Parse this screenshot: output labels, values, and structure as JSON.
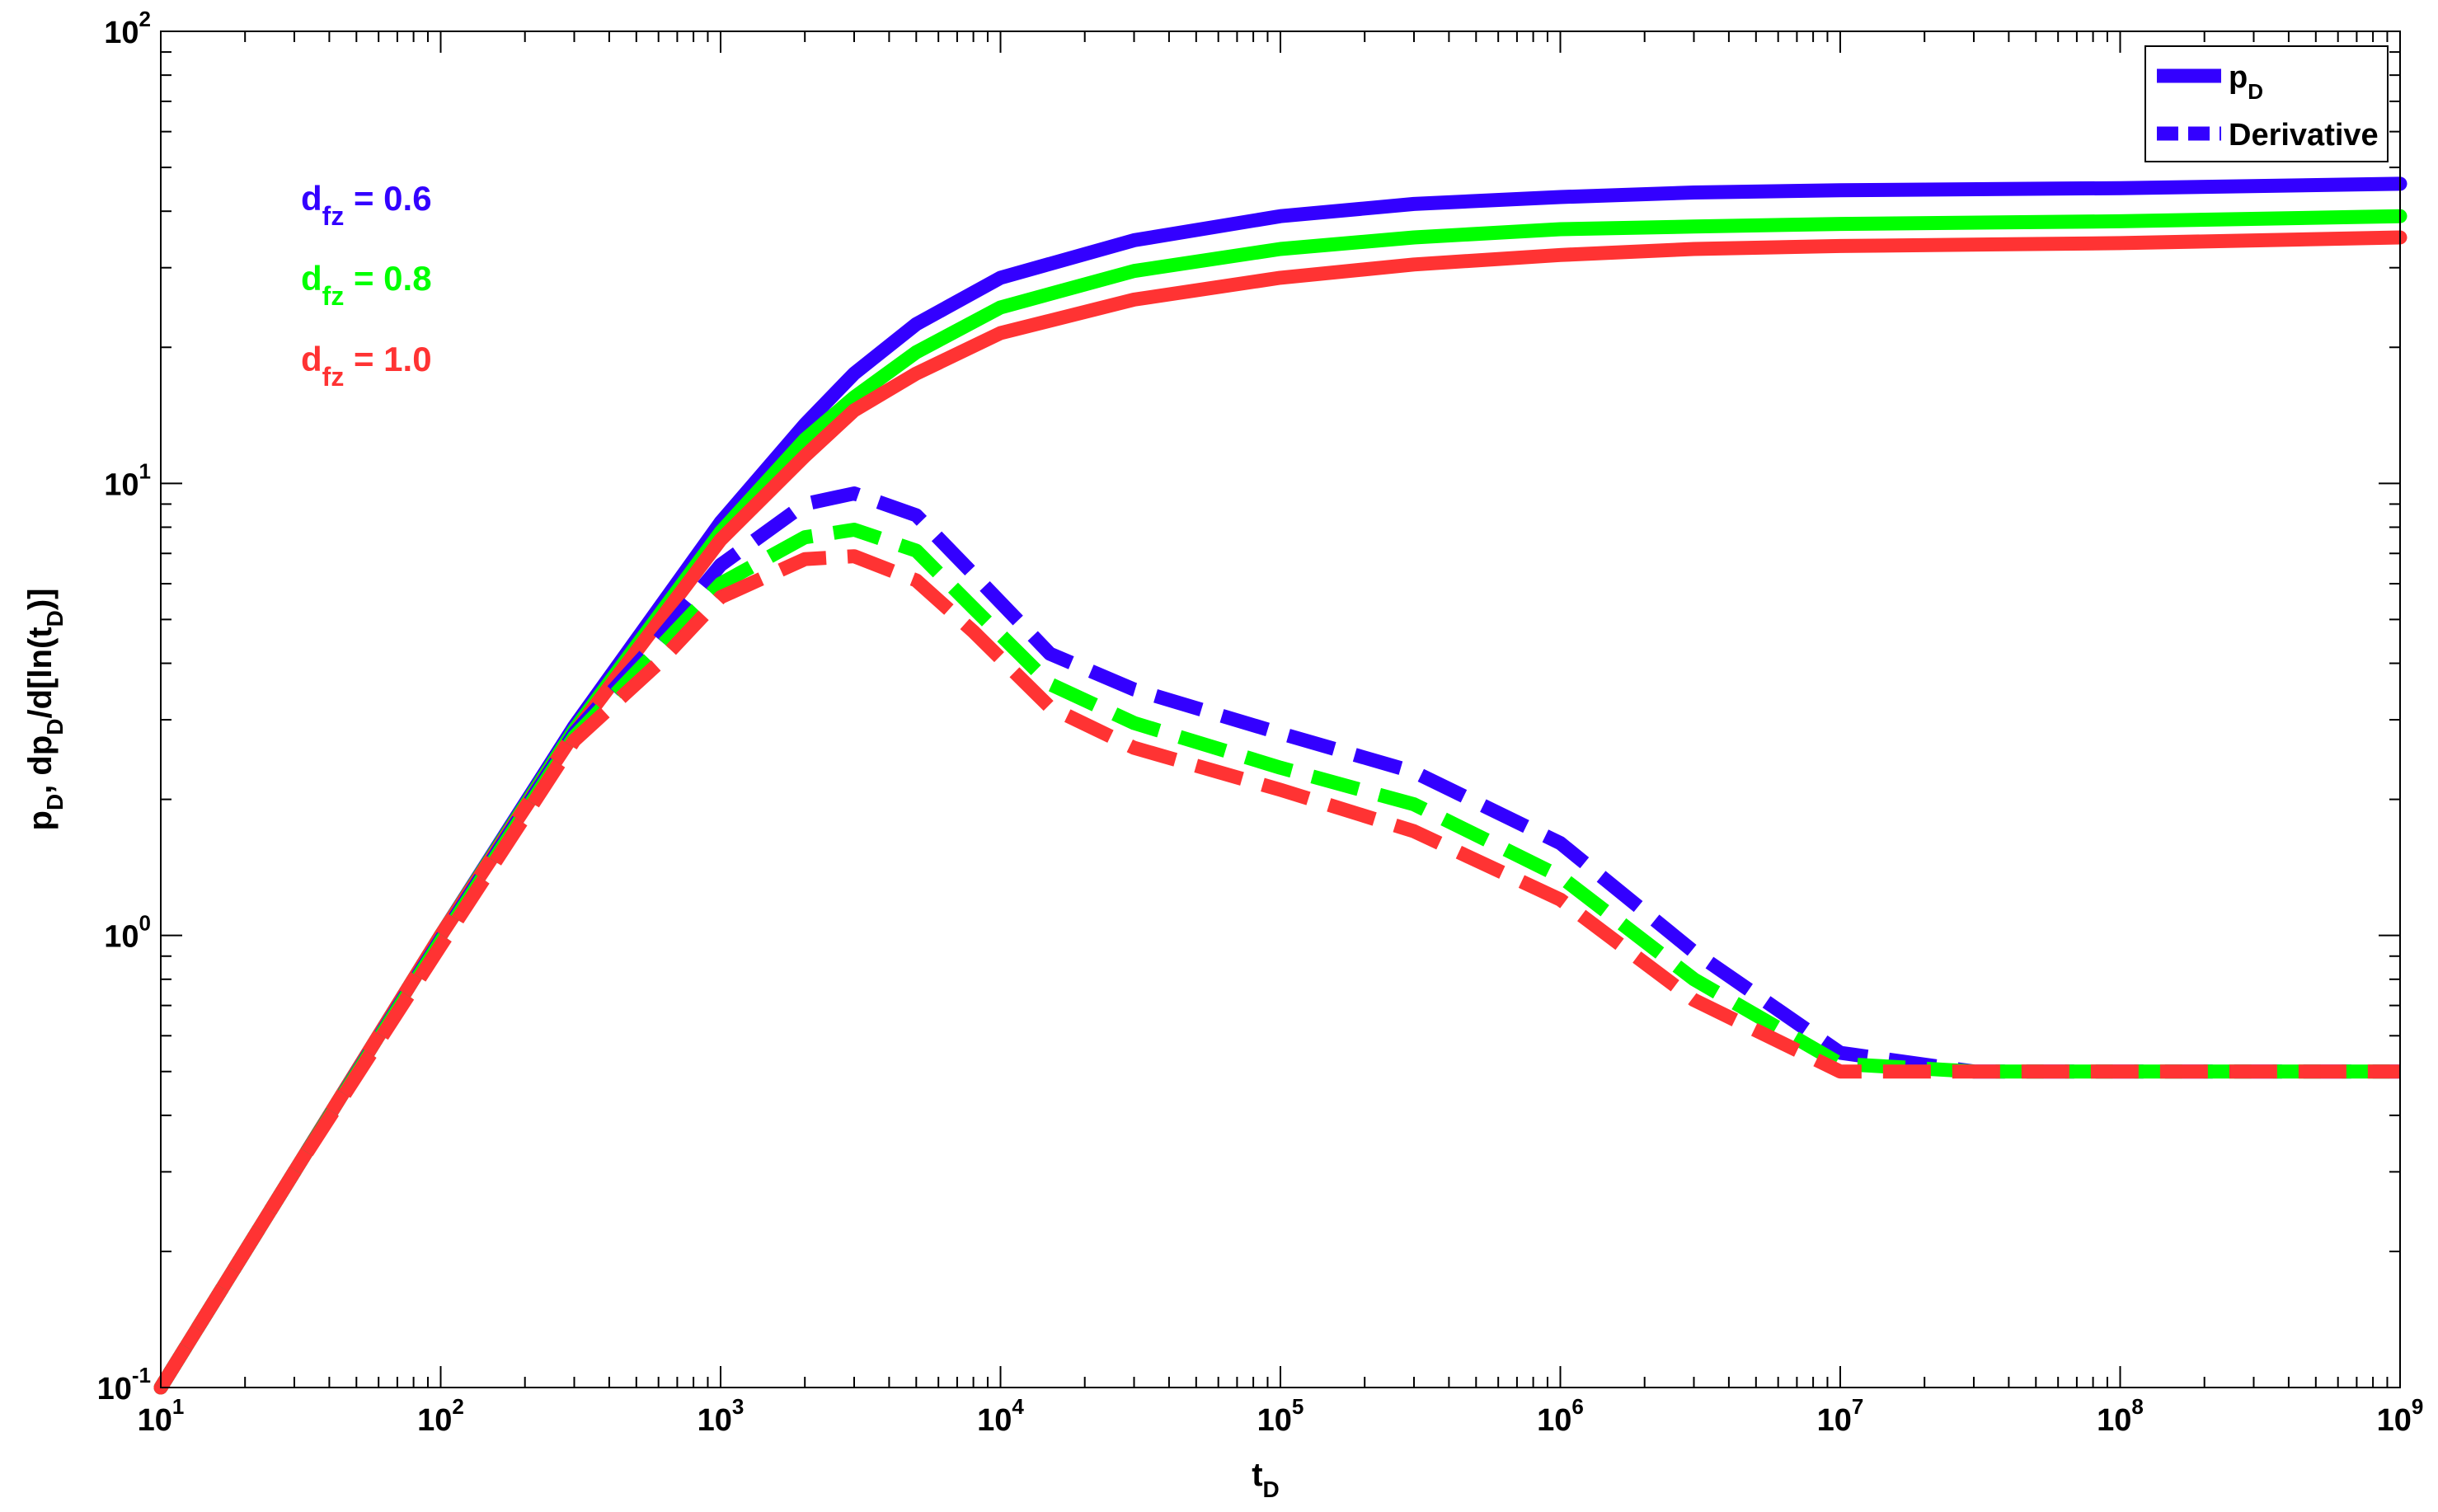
{
  "chart_data": {
    "type": "line",
    "xscale": "log",
    "yscale": "log",
    "xlim": [
      10,
      1000000000
    ],
    "ylim": [
      0.1,
      100
    ],
    "xlabel": {
      "base": "t",
      "sub": "D"
    },
    "ylabel": "p_D, dp_D/d[ln(t_D)]",
    "x_ticks": [
      {
        "base": "10",
        "exp": "1",
        "value": 10
      },
      {
        "base": "10",
        "exp": "2",
        "value": 100
      },
      {
        "base": "10",
        "exp": "3",
        "value": 1000
      },
      {
        "base": "10",
        "exp": "4",
        "value": 10000
      },
      {
        "base": "10",
        "exp": "5",
        "value": 100000
      },
      {
        "base": "10",
        "exp": "6",
        "value": 1000000
      },
      {
        "base": "10",
        "exp": "7",
        "value": 10000000
      },
      {
        "base": "10",
        "exp": "8",
        "value": 100000000
      },
      {
        "base": "10",
        "exp": "9",
        "value": 1000000000
      }
    ],
    "y_ticks": [
      {
        "base": "10",
        "exp": "-1",
        "value": 0.1
      },
      {
        "base": "10",
        "exp": "0",
        "value": 1
      },
      {
        "base": "10",
        "exp": "1",
        "value": 10
      },
      {
        "base": "10",
        "exp": "2",
        "value": 100
      }
    ],
    "legend": {
      "position": "top-right",
      "entries": [
        {
          "label": "p",
          "sub": "D",
          "style": "solid",
          "color": "#3300ff"
        },
        {
          "label": "Derivative",
          "sub": "",
          "style": "dashed",
          "color": "#3300ff"
        }
      ]
    },
    "annotations": [
      {
        "base": "d",
        "sub": "fz",
        "text": " = 0.6",
        "color": "#3300ff"
      },
      {
        "base": "d",
        "sub": "fz",
        "text": " = 0.8",
        "color": "#00ff00"
      },
      {
        "base": "d",
        "sub": "fz",
        "text": " = 1.0",
        "color": "#ff3333"
      }
    ],
    "series": [
      {
        "name": "p_D, d_fz = 0.6",
        "color": "#3300ff",
        "style": "solid",
        "x": [
          10,
          30,
          100,
          300,
          1000,
          2000,
          3000,
          5000,
          10000,
          30000,
          100000,
          300000,
          1000000,
          3000000,
          10000000,
          100000000,
          1000000000
        ],
        "y": [
          0.1,
          0.3,
          1.0,
          2.9,
          8.2,
          13.5,
          17.5,
          22.5,
          28.5,
          34.5,
          39.0,
          41.5,
          43.0,
          44.0,
          44.5,
          45.0,
          46.0
        ]
      },
      {
        "name": "p_D, d_fz = 0.8",
        "color": "#00ff00",
        "style": "solid",
        "x": [
          10,
          30,
          100,
          300,
          1000,
          2000,
          3000,
          5000,
          10000,
          30000,
          100000,
          300000,
          1000000,
          3000000,
          10000000,
          100000000,
          1000000000
        ],
        "y": [
          0.1,
          0.3,
          1.0,
          2.85,
          7.8,
          12.5,
          15.5,
          19.5,
          24.5,
          29.5,
          33.0,
          35.0,
          36.5,
          37.0,
          37.5,
          38.0,
          39.0
        ]
      },
      {
        "name": "p_D, d_fz = 1.0",
        "color": "#ff3333",
        "style": "solid",
        "x": [
          10,
          30,
          100,
          300,
          1000,
          2000,
          3000,
          5000,
          10000,
          30000,
          100000,
          300000,
          1000000,
          3000000,
          10000000,
          100000000,
          1000000000
        ],
        "y": [
          0.1,
          0.3,
          1.0,
          2.8,
          7.5,
          11.5,
          14.5,
          17.5,
          21.5,
          25.5,
          28.5,
          30.5,
          32.0,
          33.0,
          33.5,
          34.0,
          35.0
        ]
      },
      {
        "name": "Derivative, d_fz = 0.6",
        "color": "#3300ff",
        "style": "dashed",
        "x": [
          10,
          30,
          100,
          300,
          600,
          1000,
          2000,
          3000,
          5000,
          8000,
          15000,
          30000,
          100000,
          300000,
          1000000,
          3000000,
          10000000,
          30000000,
          100000000,
          1000000000
        ],
        "y": [
          0.1,
          0.3,
          0.98,
          2.8,
          4.5,
          6.6,
          9.0,
          9.5,
          8.5,
          6.3,
          4.2,
          3.5,
          2.8,
          2.3,
          1.6,
          0.92,
          0.55,
          0.5,
          0.5,
          0.5
        ]
      },
      {
        "name": "Derivative, d_fz = 0.8",
        "color": "#00ff00",
        "style": "dashed",
        "x": [
          10,
          30,
          100,
          300,
          600,
          1000,
          2000,
          3000,
          5000,
          8000,
          15000,
          30000,
          100000,
          300000,
          1000000,
          3000000,
          10000000,
          30000000,
          100000000,
          1000000000
        ],
        "y": [
          0.1,
          0.3,
          0.97,
          2.75,
          4.3,
          6.0,
          7.6,
          7.9,
          7.1,
          5.3,
          3.6,
          2.95,
          2.35,
          1.95,
          1.35,
          0.8,
          0.52,
          0.5,
          0.5,
          0.5
        ]
      },
      {
        "name": "Derivative, d_fz = 1.0",
        "color": "#ff3333",
        "style": "dashed",
        "x": [
          10,
          30,
          100,
          300,
          600,
          1000,
          2000,
          3000,
          5000,
          8000,
          15000,
          30000,
          100000,
          300000,
          1000000,
          3000000,
          10000000,
          30000000,
          100000000,
          1000000000
        ],
        "y": [
          0.1,
          0.3,
          0.95,
          2.7,
          4.0,
          5.6,
          6.8,
          6.9,
          6.1,
          4.7,
          3.2,
          2.6,
          2.1,
          1.7,
          1.2,
          0.72,
          0.5,
          0.5,
          0.5,
          0.5
        ]
      }
    ]
  }
}
